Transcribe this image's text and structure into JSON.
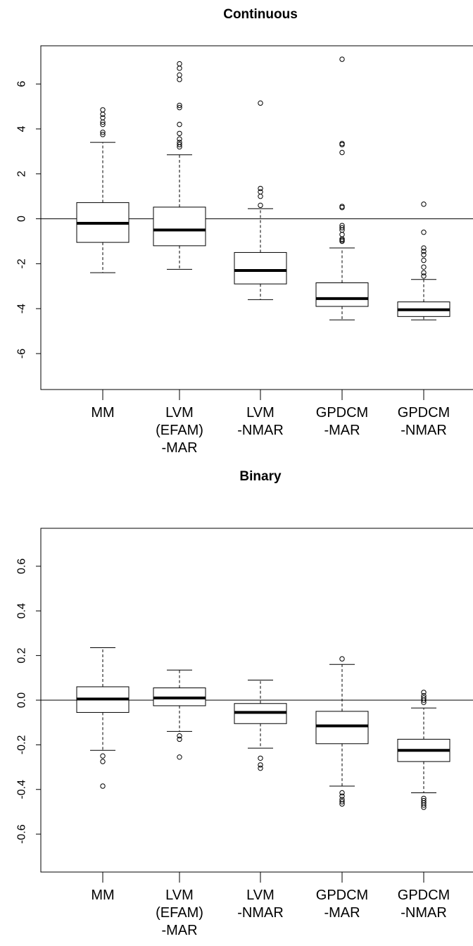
{
  "chart_data": [
    {
      "type": "boxplot",
      "title": "Continuous",
      "ylim": [
        -7.6,
        7.7
      ],
      "yticks": [
        "6",
        "4",
        "2",
        "0",
        "-2",
        "-4",
        "-6"
      ],
      "yticks_values": [
        6,
        4,
        2,
        0,
        -2,
        -4,
        -6
      ],
      "reference_line": 0,
      "categories": [
        [
          "MM"
        ],
        [
          "LVM",
          "(EFAM)",
          "-MAR"
        ],
        [
          "LVM",
          "-NMAR"
        ],
        [
          "GPDCM",
          "-MAR"
        ],
        [
          "GPDCM",
          "-NMAR"
        ]
      ],
      "boxes": [
        {
          "whisker_low": -2.4,
          "q1": -1.05,
          "median": -0.2,
          "q3": 0.72,
          "whisker_high": 3.4,
          "outliers": [
            3.75,
            3.85,
            4.2,
            4.3,
            4.5,
            4.65,
            4.85
          ]
        },
        {
          "whisker_low": -2.25,
          "q1": -1.2,
          "median": -0.5,
          "q3": 0.52,
          "whisker_high": 2.85,
          "outliers": [
            3.2,
            3.3,
            3.4,
            3.55,
            3.8,
            4.2,
            4.95,
            5.05,
            6.2,
            6.4,
            6.7,
            6.9
          ]
        },
        {
          "whisker_low": -3.6,
          "q1": -2.9,
          "median": -2.3,
          "q3": -1.5,
          "whisker_high": 0.45,
          "outliers": [
            0.6,
            1.0,
            1.2,
            1.35,
            5.15
          ]
        },
        {
          "whisker_low": -4.5,
          "q1": -3.9,
          "median": -3.55,
          "q3": -2.85,
          "whisker_high": -1.3,
          "outliers": [
            -1.0,
            -0.95,
            -0.9,
            -0.7,
            -0.5,
            -0.4,
            -0.3,
            0.5,
            0.55,
            2.95,
            3.3,
            3.35,
            7.1
          ]
        },
        {
          "whisker_low": -4.5,
          "q1": -4.35,
          "median": -4.05,
          "q3": -3.7,
          "whisker_high": -2.7,
          "outliers": [
            -2.55,
            -2.4,
            -2.15,
            -1.85,
            -1.6,
            -1.45,
            -1.3,
            -0.6,
            0.65
          ]
        }
      ]
    },
    {
      "type": "boxplot",
      "title": "Binary",
      "ylim": [
        -0.77,
        0.77
      ],
      "yticks": [
        "0.6",
        "0.4",
        "0.2",
        "0.0",
        "-0.2",
        "-0.4",
        "-0.6"
      ],
      "yticks_values": [
        0.6,
        0.4,
        0.2,
        0.0,
        -0.2,
        -0.4,
        -0.6
      ],
      "reference_line": 0,
      "categories": [
        [
          "MM"
        ],
        [
          "LVM",
          "(EFAM)",
          "-MAR"
        ],
        [
          "LVM",
          "-NMAR"
        ],
        [
          "GPDCM",
          "-MAR"
        ],
        [
          "GPDCM",
          "-NMAR"
        ]
      ],
      "boxes": [
        {
          "whisker_low": -0.225,
          "q1": -0.055,
          "median": 0.005,
          "q3": 0.06,
          "whisker_high": 0.235,
          "outliers": [
            -0.25,
            -0.275,
            -0.385
          ]
        },
        {
          "whisker_low": -0.14,
          "q1": -0.025,
          "median": 0.01,
          "q3": 0.055,
          "whisker_high": 0.135,
          "outliers": [
            -0.16,
            -0.175,
            -0.255
          ]
        },
        {
          "whisker_low": -0.215,
          "q1": -0.105,
          "median": -0.055,
          "q3": -0.015,
          "whisker_high": 0.09,
          "outliers": [
            -0.26,
            -0.29,
            -0.305
          ]
        },
        {
          "whisker_low": -0.385,
          "q1": -0.195,
          "median": -0.115,
          "q3": -0.05,
          "whisker_high": 0.16,
          "outliers": [
            -0.415,
            -0.43,
            -0.445,
            -0.455,
            -0.465,
            0.185
          ]
        },
        {
          "whisker_low": -0.415,
          "q1": -0.275,
          "median": -0.225,
          "q3": -0.175,
          "whisker_high": -0.035,
          "outliers": [
            -0.44,
            -0.45,
            -0.46,
            -0.47,
            -0.48,
            -0.01,
            0.0,
            0.01,
            0.02,
            0.035
          ]
        }
      ]
    }
  ]
}
